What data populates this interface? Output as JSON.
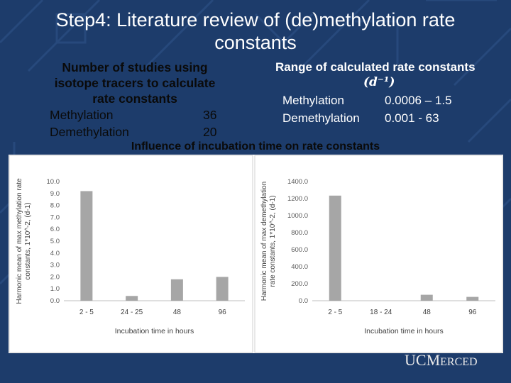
{
  "slide": {
    "title_line1": "Step4: Literature review of (de)methylation rate",
    "title_line2": "constants",
    "chart_section_title": "Influence of incubation time on rate constants"
  },
  "studies": {
    "heading_line1": "Number of studies using",
    "heading_line2": "isotope tracers to calculate",
    "heading_line3": "rate constants",
    "rows": [
      {
        "label": "Methylation",
        "count": "36"
      },
      {
        "label": "Demethylation",
        "count": "20"
      }
    ]
  },
  "ranges": {
    "heading": "Range of calculated rate constants",
    "unit": "(d⁻¹)",
    "rows": [
      {
        "label": "Methylation",
        "value": "0.0006 – 1.5"
      },
      {
        "label": "Demethylation",
        "value": "0.001 - 63"
      }
    ]
  },
  "logo": {
    "text_a": "UC",
    "text_b": "M",
    "text_c": "ERCED"
  },
  "chart_data": [
    {
      "type": "bar",
      "categories": [
        "2 - 5",
        "24 - 25",
        "48",
        "96"
      ],
      "values": [
        9.2,
        0.4,
        1.8,
        2.0
      ],
      "title": "",
      "xlabel": "Incubation time in hours",
      "ylabel_line1": "Harmonic mean of max methylation rate",
      "ylabel_line2": "constants, 1*10^-2, (d-1)",
      "ylim": [
        0,
        10
      ],
      "yticks": [
        "0.0",
        "1.0",
        "2.0",
        "3.0",
        "4.0",
        "5.0",
        "6.0",
        "7.0",
        "8.0",
        "9.0",
        "10.0"
      ],
      "grid": false,
      "color": "#a6a6a6"
    },
    {
      "type": "bar",
      "categories": [
        "2 - 5",
        "18 - 24",
        "48",
        "96"
      ],
      "values": [
        1235,
        0,
        70,
        45
      ],
      "title": "",
      "xlabel": "Incubation time in hours",
      "ylabel_line1": "Harmonic mean of max demethylation",
      "ylabel_line2": "rate constants, 1*10^-2, (d-1)",
      "ylim": [
        0,
        1400
      ],
      "yticks": [
        "0.0",
        "200.0",
        "400.0",
        "600.0",
        "800.0",
        "1000.0",
        "1200.0",
        "1400.0"
      ],
      "grid": false,
      "color": "#a6a6a6"
    }
  ]
}
